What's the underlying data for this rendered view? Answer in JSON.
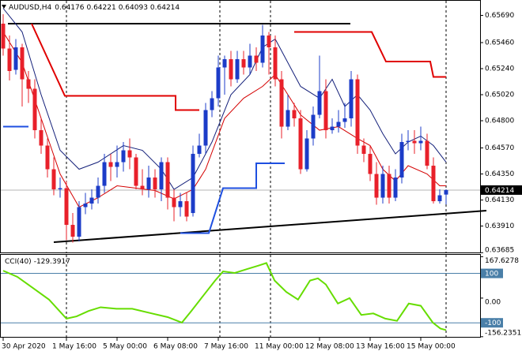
{
  "chart_data": {
    "type": "candlestick",
    "symbol": "AUDUSD,H4",
    "up_color": "#1c3cc8",
    "down_color": "#e8202a",
    "categories": [
      "30 Apr 2020",
      null,
      null,
      null,
      null,
      null,
      null,
      null,
      null,
      null,
      "1 May 16:00",
      null,
      null,
      null,
      null,
      null,
      null,
      null,
      "5 May 00:00",
      null,
      null,
      null,
      null,
      null,
      null,
      null,
      "6 May 08:00",
      null,
      null,
      null,
      null,
      null,
      null,
      null,
      "7 May 16:00",
      null,
      null,
      null,
      null,
      null,
      null,
      null,
      "11 May 00:00",
      null,
      null,
      null,
      null,
      null,
      null,
      null,
      "12 May 08:00",
      null,
      null,
      null,
      null,
      null,
      null,
      null,
      "13 May 16:00",
      null,
      null,
      null,
      null,
      null,
      null,
      null,
      "15 May 00:00",
      null,
      null,
      null,
      null
    ],
    "candles": [
      [
        0.6562,
        0.657,
        0.6535,
        0.6541
      ],
      [
        0.6541,
        0.6552,
        0.6514,
        0.6522
      ],
      [
        0.6523,
        0.6549,
        0.6519,
        0.6542
      ],
      [
        0.6542,
        0.6545,
        0.6492,
        0.6515
      ],
      [
        0.6515,
        0.6522,
        0.6495,
        0.6507
      ],
      [
        0.6507,
        0.6515,
        0.6465,
        0.6472
      ],
      [
        0.6472,
        0.6482,
        0.6452,
        0.6459
      ],
      [
        0.6459,
        0.6465,
        0.6432,
        0.6439
      ],
      [
        0.6439,
        0.6449,
        0.6417,
        0.6422
      ],
      [
        0.6422,
        0.6432,
        0.6415,
        0.6423
      ],
      [
        0.6423,
        0.6429,
        0.6379,
        0.6392
      ],
      [
        0.6392,
        0.6402,
        0.6377,
        0.6382
      ],
      [
        0.6382,
        0.6412,
        0.6378,
        0.6407
      ],
      [
        0.6407,
        0.6419,
        0.6401,
        0.641
      ],
      [
        0.641,
        0.6422,
        0.6405,
        0.6415
      ],
      [
        0.6415,
        0.6432,
        0.641,
        0.6425
      ],
      [
        0.6425,
        0.6452,
        0.6419,
        0.6445
      ],
      [
        0.6445,
        0.6452,
        0.6429,
        0.6441
      ],
      [
        0.6441,
        0.6459,
        0.6432,
        0.6445
      ],
      [
        0.6445,
        0.6462,
        0.6437,
        0.6455
      ],
      [
        0.6455,
        0.6465,
        0.6439,
        0.6449
      ],
      [
        0.6449,
        0.6452,
        0.6422,
        0.6425
      ],
      [
        0.6425,
        0.6439,
        0.6417,
        0.6422
      ],
      [
        0.6422,
        0.6442,
        0.6415,
        0.6432
      ],
      [
        0.6432,
        0.6439,
        0.6415,
        0.6422
      ],
      [
        0.6422,
        0.6449,
        0.6412,
        0.6445
      ],
      [
        0.6445,
        0.6449,
        0.6405,
        0.6415
      ],
      [
        0.6415,
        0.6422,
        0.6395,
        0.6407
      ],
      [
        0.6407,
        0.6419,
        0.6399,
        0.6412
      ],
      [
        0.6412,
        0.6419,
        0.6395,
        0.6399
      ],
      [
        0.6402,
        0.6459,
        0.6399,
        0.6452
      ],
      [
        0.6452,
        0.6469,
        0.6449,
        0.6459
      ],
      [
        0.6459,
        0.6495,
        0.6452,
        0.6489
      ],
      [
        0.6489,
        0.6505,
        0.6483,
        0.6499
      ],
      [
        0.6499,
        0.6535,
        0.6492,
        0.6525
      ],
      [
        0.6525,
        0.6535,
        0.6502,
        0.6532
      ],
      [
        0.6532,
        0.6539,
        0.6509,
        0.6515
      ],
      [
        0.6515,
        0.6539,
        0.6512,
        0.6532
      ],
      [
        0.6532,
        0.6539,
        0.6519,
        0.6525
      ],
      [
        0.6525,
        0.6545,
        0.6519,
        0.6535
      ],
      [
        0.6535,
        0.6542,
        0.6522,
        0.6529
      ],
      [
        0.6529,
        0.6561,
        0.6525,
        0.6552
      ],
      [
        0.6552,
        0.6555,
        0.6519,
        0.6542
      ],
      [
        0.6542,
        0.6552,
        0.6509,
        0.6515
      ],
      [
        0.6515,
        0.6522,
        0.6465,
        0.6475
      ],
      [
        0.6475,
        0.6502,
        0.6472,
        0.6489
      ],
      [
        0.6489,
        0.6495,
        0.6475,
        0.6482
      ],
      [
        0.6482,
        0.6489,
        0.6435,
        0.6439
      ],
      [
        0.6439,
        0.6472,
        0.6437,
        0.6465
      ],
      [
        0.6465,
        0.6492,
        0.6459,
        0.6485
      ],
      [
        0.6485,
        0.6535,
        0.6482,
        0.6505
      ],
      [
        0.6505,
        0.6515,
        0.6465,
        0.6472
      ],
      [
        0.6472,
        0.6482,
        0.6469,
        0.6475
      ],
      [
        0.6475,
        0.6489,
        0.647,
        0.6479
      ],
      [
        0.6479,
        0.6495,
        0.6474,
        0.6482
      ],
      [
        0.6482,
        0.6522,
        0.6475,
        0.6515
      ],
      [
        0.6515,
        0.6519,
        0.6452,
        0.6459
      ],
      [
        0.6459,
        0.6465,
        0.6445,
        0.6452
      ],
      [
        0.6452,
        0.6459,
        0.6429,
        0.6435
      ],
      [
        0.6435,
        0.6445,
        0.6409,
        0.6415
      ],
      [
        0.6415,
        0.6442,
        0.641,
        0.6435
      ],
      [
        0.6435,
        0.6442,
        0.641,
        0.6415
      ],
      [
        0.6415,
        0.6439,
        0.6412,
        0.6432
      ],
      [
        0.6432,
        0.6469,
        0.6427,
        0.6462
      ],
      [
        0.6462,
        0.6472,
        0.6455,
        0.6463
      ],
      [
        0.6463,
        0.6472,
        0.6452,
        0.6461
      ],
      [
        0.6461,
        0.6475,
        0.6455,
        0.6463
      ],
      [
        0.6463,
        0.6469,
        0.6439,
        0.6442
      ],
      [
        0.6442,
        0.6449,
        0.641,
        0.6412
      ],
      [
        0.6412,
        0.6422,
        0.641,
        0.6417
      ],
      [
        0.64176,
        0.64221,
        0.64093,
        0.64214
      ]
    ],
    "overlays": [
      {
        "color": "#14207a",
        "width": 1,
        "x": [
          0,
          3,
          6,
          9,
          12,
          15,
          19,
          22,
          25,
          27,
          30,
          33,
          36,
          39,
          41,
          43,
          45,
          47,
          50,
          52,
          54,
          56,
          58,
          60,
          62,
          64,
          66,
          68,
          70
        ],
        "values": [
          0.6575,
          0.6555,
          0.6502,
          0.6455,
          0.6439,
          0.6445,
          0.6459,
          0.6455,
          0.6439,
          0.6422,
          0.6432,
          0.6462,
          0.6502,
          0.6519,
          0.6542,
          0.6549,
          0.6529,
          0.6509,
          0.6499,
          0.6515,
          0.6492,
          0.6502,
          0.6489,
          0.6469,
          0.6452,
          0.6462,
          0.6467,
          0.6459,
          0.6445
        ]
      },
      {
        "color": "#d40000",
        "width": 1,
        "x": [
          0,
          3,
          6,
          9,
          12,
          15,
          18,
          21,
          24,
          27,
          30,
          32,
          35,
          38,
          41,
          43,
          45,
          47,
          50,
          53,
          56,
          58,
          60,
          62,
          64,
          67,
          69,
          70
        ],
        "values": [
          0.6555,
          0.6529,
          0.6482,
          0.6435,
          0.6407,
          0.6415,
          0.6425,
          0.6423,
          0.6421,
          0.6414,
          0.6422,
          0.6439,
          0.6482,
          0.6499,
          0.6509,
          0.6519,
          0.6502,
          0.6485,
          0.6472,
          0.6475,
          0.6465,
          0.6459,
          0.6439,
          0.6429,
          0.6442,
          0.6435,
          0.6425,
          0.6425
        ]
      },
      {
        "color": "#e00000",
        "width": 2,
        "x": [
          4.5,
          9.75,
          27.25,
          27.25,
          31
        ],
        "values": [
          0.6562,
          0.6501,
          0.6501,
          0.6489,
          0.6489
        ]
      },
      {
        "color": "#e00000",
        "width": 2,
        "x": [
          46,
          58.25,
          60.5,
          67.5,
          68,
          70
        ],
        "values": [
          0.6555,
          0.6555,
          0.653,
          0.653,
          0.6517,
          0.6517
        ]
      },
      {
        "color": "#1e4fe0",
        "width": 2,
        "x": [
          0,
          4
        ],
        "values": [
          0.6475,
          0.6475
        ]
      },
      {
        "color": "#1e4fe0",
        "width": 2,
        "x": [
          28,
          32.5,
          34.75,
          40,
          40,
          44.5
        ],
        "values": [
          0.6385,
          0.6385,
          0.6423,
          0.6423,
          0.6444,
          0.6444
        ]
      }
    ],
    "ylim": [
      0.63687,
      0.6582
    ],
    "yticks": [
      {
        "value": 0.6569,
        "label": "0.65690"
      },
      {
        "value": 0.6546,
        "label": "0.65460"
      },
      {
        "value": 0.6524,
        "label": "0.65240"
      },
      {
        "value": 0.6502,
        "label": "0.65020"
      },
      {
        "value": 0.648,
        "label": "0.64800"
      },
      {
        "value": 0.6457,
        "label": "0.64570"
      },
      {
        "value": 0.6435,
        "label": "0.64350"
      },
      {
        "value": 0.6413,
        "label": "0.64130"
      },
      {
        "value": 0.6391,
        "label": "0.63910"
      },
      {
        "value": 0.63685,
        "label": "0.63685"
      }
    ],
    "cci": {
      "title": "CCI(40)",
      "color": "#66dd00",
      "x": [
        0,
        2.25,
        4.75,
        7.25,
        10,
        11.6,
        13.5,
        15.4,
        17.9,
        20.4,
        23.5,
        26,
        28.25,
        29.75,
        31.6,
        33.5,
        34.75,
        36.6,
        38.5,
        40.4,
        41.6,
        42.9,
        44.75,
        46.6,
        48.5,
        49.75,
        51,
        52.9,
        54.75,
        56.6,
        58.5,
        60.4,
        62.25,
        64.1,
        66,
        67.9,
        69.1,
        70
      ],
      "values": [
        111,
        86,
        40,
        -6,
        -83,
        -74,
        -52,
        -37,
        -43,
        -43,
        -62,
        -77,
        -99,
        -52,
        9,
        71,
        108,
        102,
        117,
        132,
        142,
        71,
        25,
        -6,
        71,
        80,
        55,
        -22,
        0,
        -68,
        -62,
        -83,
        -92,
        -22,
        -31,
        -99,
        -123,
        -129.3917
      ],
      "ylim": [
        -160,
        172
      ],
      "yticks": [
        167.6278,
        {
          "value": 0,
          "label": "0.00"
        },
        -156.2351
      ],
      "levels": [
        100,
        -100
      ],
      "level_color": "#4a7fa8"
    }
  }
}
